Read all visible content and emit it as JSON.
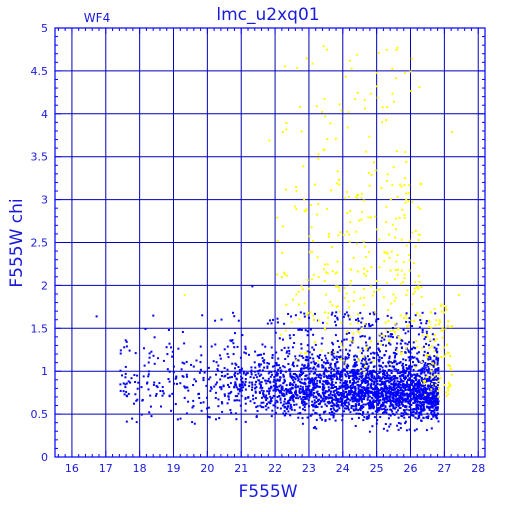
{
  "chart_data": {
    "type": "scatter",
    "title": "lmc_u2xq01",
    "panel_label": "WF4",
    "xlabel": "F555W",
    "ylabel": "F555W chi",
    "xlim": [
      15.5,
      28.2
    ],
    "ylim": [
      0,
      5
    ],
    "xticks": [
      "16",
      "17",
      "18",
      "19",
      "20",
      "21",
      "22",
      "23",
      "24",
      "25",
      "26",
      "27",
      "28"
    ],
    "yticks": [
      "0",
      "0.5",
      "1",
      "1.5",
      "2",
      "2.5",
      "3",
      "3.5",
      "4",
      "4.5",
      "5"
    ],
    "grid": true,
    "series": [
      {
        "color": "#0000ff",
        "points_count_estimate": 3000,
        "notes": "dense main locus; chi ~0.4-1.6 between mag 19 and 26.8",
        "sample_points": [
          [
            16.7,
            1.65
          ],
          [
            17.5,
            0.87
          ],
          [
            17.6,
            0.72
          ],
          [
            17.9,
            0.68
          ],
          [
            18.2,
            0.88
          ],
          [
            18.4,
            0.88
          ],
          [
            18.6,
            0.6
          ],
          [
            18.9,
            0.55
          ],
          [
            19.1,
            0.45
          ],
          [
            19.3,
            0.7
          ],
          [
            19.6,
            0.4
          ],
          [
            19.8,
            0.55
          ],
          [
            20.0,
            0.48
          ],
          [
            20.1,
            1.3
          ],
          [
            20.2,
            1.6
          ],
          [
            20.4,
            1.0
          ],
          [
            20.6,
            0.75
          ],
          [
            20.8,
            1.1
          ],
          [
            20.9,
            1.6
          ],
          [
            21.1,
            0.7
          ],
          [
            21.3,
            2.0
          ],
          [
            21.5,
            1.2
          ],
          [
            21.7,
            0.9
          ],
          [
            21.9,
            1.2
          ],
          [
            22.1,
            0.9
          ],
          [
            22.3,
            0.8
          ],
          [
            22.5,
            1.1
          ],
          [
            22.7,
            0.95
          ],
          [
            22.9,
            0.7
          ],
          [
            23.1,
            0.8
          ],
          [
            23.3,
            1.2
          ],
          [
            23.5,
            0.9
          ],
          [
            23.7,
            0.85
          ],
          [
            23.9,
            1.0
          ],
          [
            24.1,
            0.85
          ],
          [
            24.3,
            0.9
          ],
          [
            24.5,
            1.0
          ],
          [
            24.7,
            0.8
          ],
          [
            24.9,
            0.95
          ],
          [
            25.1,
            0.75
          ],
          [
            25.3,
            0.9
          ],
          [
            25.5,
            0.85
          ],
          [
            25.7,
            1.0
          ],
          [
            25.9,
            0.8
          ],
          [
            26.1,
            0.7
          ],
          [
            26.3,
            0.9
          ],
          [
            26.5,
            0.75
          ],
          [
            26.7,
            0.65
          ]
        ]
      },
      {
        "color": "#ffff00",
        "points_count_estimate": 450,
        "notes": "sparser sources with elevated chi, mag 22-27, chi 1-4.8",
        "sample_points": [
          [
            19.3,
            1.9
          ],
          [
            21.8,
            3.7
          ],
          [
            22.2,
            3.8
          ],
          [
            22.6,
            2.9
          ],
          [
            22.8,
            3.4
          ],
          [
            23.0,
            2.4
          ],
          [
            23.2,
            4.1
          ],
          [
            23.4,
            4.8
          ],
          [
            23.6,
            3.9
          ],
          [
            23.8,
            3.2
          ],
          [
            24.0,
            2.6
          ],
          [
            24.2,
            2.2
          ],
          [
            24.4,
            4.7
          ],
          [
            24.6,
            3.0
          ],
          [
            24.8,
            2.0
          ],
          [
            25.0,
            4.2
          ],
          [
            25.2,
            2.4
          ],
          [
            25.4,
            1.8
          ],
          [
            25.6,
            1.5
          ],
          [
            25.8,
            2.8
          ],
          [
            26.0,
            1.6
          ],
          [
            26.2,
            2.0
          ],
          [
            26.5,
            1.2
          ],
          [
            26.8,
            0.9
          ],
          [
            27.0,
            1.5
          ],
          [
            27.2,
            3.8
          ],
          [
            27.4,
            1.9
          ]
        ]
      }
    ]
  },
  "colors": {
    "axis": "#0000ff",
    "grid": "#0000b8",
    "text": "#1a1adc",
    "blue_points": "#0000ff",
    "yellow_points": "#ffff00",
    "background": "#ffffff"
  }
}
